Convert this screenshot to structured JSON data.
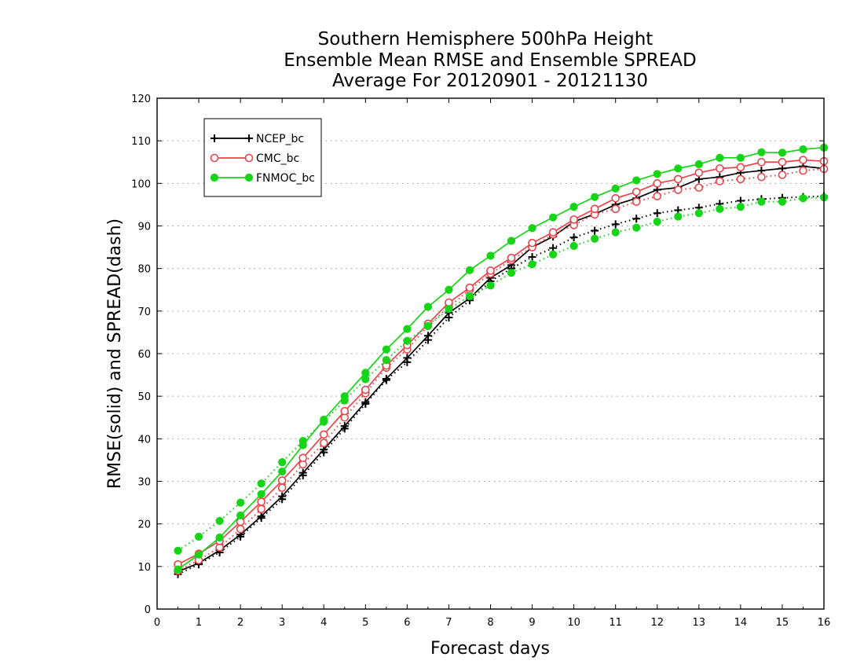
{
  "chart_data": {
    "type": "line",
    "title": [
      "Southern Hemisphere 500hPa Height",
      "Ensemble Mean RMSE and Ensemble SPREAD",
      "Average For 20120901 - 20121130"
    ],
    "xlabel": "Forecast days",
    "ylabel": "RMSE(solid) and SPREAD(dash)",
    "xlim": [
      0,
      16
    ],
    "ylim": [
      0,
      120
    ],
    "xticks": [
      0,
      1,
      2,
      3,
      4,
      5,
      6,
      7,
      8,
      9,
      10,
      11,
      12,
      13,
      14,
      15,
      16
    ],
    "yticks": [
      0,
      10,
      20,
      30,
      40,
      50,
      60,
      70,
      80,
      90,
      100,
      110,
      120
    ],
    "grid": "horizontal dotted",
    "legend_position": "top-left",
    "x": [
      0.5,
      1,
      1.5,
      2,
      2.5,
      3,
      3.5,
      4,
      4.5,
      5,
      5.5,
      6,
      6.5,
      7,
      7.5,
      8,
      8.5,
      9,
      9.5,
      10,
      10.5,
      11,
      11.5,
      12,
      12.5,
      13,
      13.5,
      14,
      14.5,
      15,
      15.5,
      16
    ],
    "series": [
      {
        "name": "NCEP_bc",
        "color": "#000000",
        "marker": "plus",
        "rmse": [
          8.8,
          10.8,
          13.8,
          17.5,
          21.8,
          26.5,
          32.0,
          37.5,
          43.0,
          48.6,
          54.1,
          59.0,
          64.2,
          69.6,
          73.0,
          77.8,
          80.8,
          85.0,
          87.5,
          91.0,
          92.8,
          95.0,
          96.5,
          98.5,
          99.0,
          101.0,
          101.5,
          102.5,
          103.0,
          103.5,
          104.0,
          103.5
        ],
        "spread": [
          8.2,
          10.5,
          13.3,
          17.0,
          21.4,
          25.8,
          31.4,
          36.8,
          42.4,
          48.2,
          53.8,
          58.0,
          63.2,
          68.5,
          72.5,
          77.0,
          80.0,
          82.7,
          84.8,
          87.3,
          88.9,
          90.4,
          91.7,
          93.0,
          93.7,
          94.3,
          95.2,
          95.9,
          96.3,
          96.6,
          96.8,
          97.0
        ]
      },
      {
        "name": "CMC_bc",
        "color": "#e8454a",
        "marker": "open-circle",
        "rmse": [
          10.5,
          13.0,
          16.0,
          20.5,
          25.2,
          30.2,
          35.5,
          41.0,
          46.5,
          51.5,
          57.2,
          62.0,
          67.0,
          72.0,
          75.5,
          79.5,
          82.5,
          86.0,
          88.5,
          91.5,
          94.0,
          96.5,
          98.0,
          100.0,
          101.0,
          102.5,
          103.5,
          103.8,
          105.0,
          105.0,
          105.5,
          105.2
        ],
        "spread": [
          9.0,
          11.5,
          14.5,
          18.8,
          23.5,
          28.5,
          34.0,
          39.0,
          45.0,
          50.7,
          56.7,
          61.0,
          66.5,
          71.0,
          75.0,
          78.8,
          82.0,
          85.0,
          88.0,
          90.2,
          92.7,
          94.0,
          95.7,
          97.0,
          98.5,
          99.0,
          100.5,
          101.0,
          101.5,
          102.0,
          103.0,
          103.4
        ]
      },
      {
        "name": "FNMOC_bc",
        "color": "#16d416",
        "marker": "filled-circle",
        "rmse": [
          9.3,
          12.8,
          16.8,
          22.0,
          27.0,
          32.3,
          38.5,
          44.5,
          50.0,
          55.5,
          61.0,
          65.8,
          71.0,
          75.0,
          79.6,
          83.0,
          86.5,
          89.5,
          92.0,
          94.5,
          96.8,
          98.8,
          100.7,
          102.2,
          103.5,
          104.5,
          106.0,
          106.0,
          107.3,
          107.2,
          108.0,
          108.4
        ],
        "spread": [
          13.7,
          17.0,
          20.7,
          25.0,
          29.5,
          34.5,
          39.5,
          44.0,
          49.0,
          54.0,
          58.5,
          63.0,
          66.5,
          70.5,
          73.5,
          76.0,
          79.0,
          81.0,
          83.3,
          85.3,
          87.0,
          88.5,
          89.6,
          91.0,
          92.2,
          93.0,
          94.0,
          94.5,
          95.7,
          95.7,
          96.5,
          96.7
        ]
      }
    ]
  }
}
